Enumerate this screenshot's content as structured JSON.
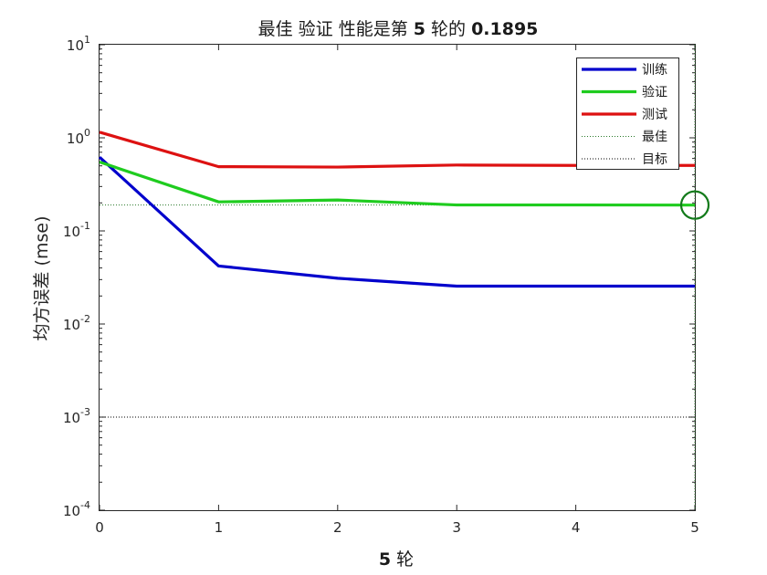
{
  "chart_data": {
    "type": "line",
    "title": {
      "prefix": "最佳 验证 性能是第 ",
      "epoch": "5",
      "middle": " 轮的 ",
      "value": "0.1895"
    },
    "xlabel": {
      "num": "5",
      "unit": " 轮"
    },
    "ylabel": "均方误差 (mse)",
    "y_scale": "log",
    "xlim": [
      0,
      5
    ],
    "ylim": [
      0.0001,
      10
    ],
    "x_ticks": [
      "0",
      "1",
      "2",
      "3",
      "4",
      "5"
    ],
    "y_ticks": [
      {
        "base": "10",
        "exp": "1"
      },
      {
        "base": "10",
        "exp": "0"
      },
      {
        "base": "10",
        "exp": "-1"
      },
      {
        "base": "10",
        "exp": "-2"
      },
      {
        "base": "10",
        "exp": "-3"
      },
      {
        "base": "10",
        "exp": "-4"
      }
    ],
    "x": [
      0,
      1,
      2,
      3,
      4,
      5
    ],
    "series": [
      {
        "name": "训练",
        "color": "#0000cc",
        "values": [
          0.62,
          0.042,
          0.031,
          0.0255,
          0.0255,
          0.0255
        ]
      },
      {
        "name": "验证",
        "color": "#1fcc1f",
        "values": [
          0.55,
          0.205,
          0.215,
          0.19,
          0.19,
          0.1895
        ]
      },
      {
        "name": "测试",
        "color": "#dd1111",
        "values": [
          1.15,
          0.49,
          0.485,
          0.51,
          0.505,
          0.505
        ]
      }
    ],
    "best_marker": {
      "label": "最佳",
      "epoch": 5,
      "value": 0.1895,
      "color": "#127a1a"
    },
    "goal": {
      "label": "目标",
      "value": 0.001
    },
    "legend_position": "top-right",
    "grid": false
  }
}
